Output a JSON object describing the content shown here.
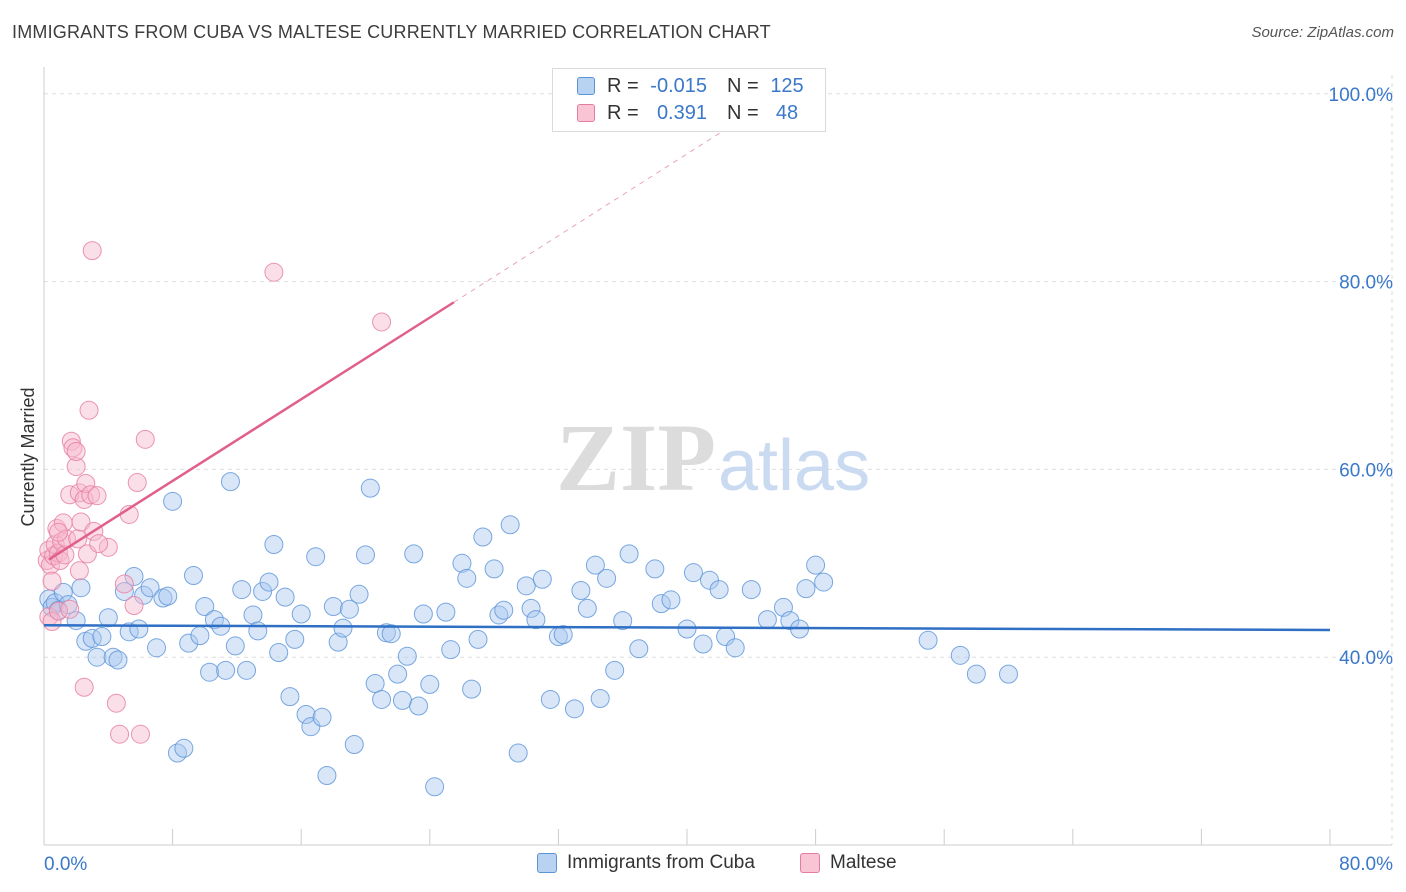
{
  "header": {
    "title": "IMMIGRANTS FROM CUBA VS MALTESE CURRENTLY MARRIED CORRELATION CHART",
    "source": "Source: ZipAtlas.com"
  },
  "legend": {
    "rows": [
      {
        "r_label": "R =",
        "r_value": "-0.015",
        "n_label": "N =",
        "n_value": "125"
      },
      {
        "r_label": "R =",
        "r_value": "0.391",
        "n_label": "N =",
        "n_value": "48"
      }
    ]
  },
  "bottom_legend": {
    "series1": "Immigrants from Cuba",
    "series2": "Maltese"
  },
  "colors": {
    "cuba_fill": "#a9c8f0",
    "cuba_stroke": "#5b93d8",
    "cuba_line": "#2f6fc4",
    "maltese_fill": "#f7b7cb",
    "maltese_stroke": "#e67c9f",
    "maltese_line": "#e0608b",
    "axis_label": "#3a78c9",
    "grid": "#dedede"
  },
  "chart_data": {
    "type": "scatter",
    "title": "IMMIGRANTS FROM CUBA VS MALTESE CURRENTLY MARRIED CORRELATION CHART",
    "xlabel": "",
    "ylabel": "Currently Married",
    "xlim": [
      0,
      80
    ],
    "ylim": [
      20,
      102
    ],
    "x_tick_labels": [
      "0.0%",
      "80.0%"
    ],
    "y_tick_labels": [
      "40.0%",
      "60.0%",
      "80.0%",
      "100.0%"
    ],
    "y_ticks": [
      40,
      60,
      80,
      100
    ],
    "watermark": {
      "zip": "ZIP",
      "atlas": "atlas"
    },
    "series": [
      {
        "name": "Immigrants from Cuba",
        "R": -0.015,
        "N": 125,
        "trend": {
          "x": [
            0,
            80
          ],
          "y": [
            43.4,
            42.9
          ]
        },
        "points": [
          [
            0.3,
            46.2
          ],
          [
            0.5,
            45.3
          ],
          [
            0.7,
            45.8
          ],
          [
            0.9,
            45.0
          ],
          [
            1.2,
            46.9
          ],
          [
            1.5,
            45.6
          ],
          [
            2.0,
            43.9
          ],
          [
            2.3,
            47.4
          ],
          [
            2.6,
            41.7
          ],
          [
            3.0,
            42.0
          ],
          [
            3.3,
            40.0
          ],
          [
            3.6,
            42.2
          ],
          [
            4.0,
            44.2
          ],
          [
            4.3,
            40.0
          ],
          [
            4.6,
            39.7
          ],
          [
            5.0,
            47.0
          ],
          [
            5.3,
            42.7
          ],
          [
            5.6,
            48.6
          ],
          [
            5.9,
            43.0
          ],
          [
            6.2,
            46.6
          ],
          [
            6.6,
            47.4
          ],
          [
            7.0,
            41.0
          ],
          [
            7.4,
            46.3
          ],
          [
            7.7,
            46.5
          ],
          [
            8.0,
            56.6
          ],
          [
            8.3,
            29.8
          ],
          [
            8.7,
            30.3
          ],
          [
            9.0,
            41.5
          ],
          [
            9.3,
            48.7
          ],
          [
            9.7,
            42.3
          ],
          [
            10.0,
            45.4
          ],
          [
            10.3,
            38.4
          ],
          [
            10.6,
            44.0
          ],
          [
            11.0,
            43.3
          ],
          [
            11.3,
            38.6
          ],
          [
            11.6,
            58.7
          ],
          [
            11.9,
            41.2
          ],
          [
            12.3,
            47.2
          ],
          [
            12.6,
            38.6
          ],
          [
            13.0,
            44.5
          ],
          [
            13.3,
            42.8
          ],
          [
            13.6,
            47.0
          ],
          [
            14.0,
            48.0
          ],
          [
            14.3,
            52.0
          ],
          [
            14.6,
            40.5
          ],
          [
            15.0,
            46.4
          ],
          [
            15.3,
            35.8
          ],
          [
            15.6,
            41.9
          ],
          [
            16.0,
            44.6
          ],
          [
            16.3,
            33.9
          ],
          [
            16.6,
            32.6
          ],
          [
            16.9,
            50.7
          ],
          [
            17.3,
            33.6
          ],
          [
            17.6,
            27.4
          ],
          [
            18.0,
            45.4
          ],
          [
            18.3,
            41.6
          ],
          [
            18.6,
            43.1
          ],
          [
            19.0,
            45.1
          ],
          [
            19.3,
            30.7
          ],
          [
            19.6,
            46.7
          ],
          [
            20.0,
            50.9
          ],
          [
            20.3,
            58.0
          ],
          [
            20.6,
            37.2
          ],
          [
            21.0,
            35.5
          ],
          [
            21.3,
            42.6
          ],
          [
            21.6,
            42.5
          ],
          [
            22.0,
            38.2
          ],
          [
            22.3,
            35.4
          ],
          [
            22.6,
            40.1
          ],
          [
            23.0,
            51.0
          ],
          [
            23.3,
            34.8
          ],
          [
            23.6,
            44.6
          ],
          [
            24.0,
            37.1
          ],
          [
            24.3,
            26.2
          ],
          [
            25.0,
            44.8
          ],
          [
            25.3,
            40.8
          ],
          [
            26.0,
            50.0
          ],
          [
            26.3,
            48.4
          ],
          [
            26.6,
            36.6
          ],
          [
            27.0,
            41.9
          ],
          [
            27.3,
            52.8
          ],
          [
            28.0,
            49.4
          ],
          [
            28.3,
            44.5
          ],
          [
            28.6,
            45.0
          ],
          [
            29.0,
            54.1
          ],
          [
            29.5,
            29.8
          ],
          [
            30.0,
            47.6
          ],
          [
            30.3,
            45.2
          ],
          [
            30.6,
            44.0
          ],
          [
            31.0,
            48.3
          ],
          [
            31.5,
            35.5
          ],
          [
            32.0,
            42.2
          ],
          [
            32.3,
            42.4
          ],
          [
            33.0,
            34.5
          ],
          [
            33.4,
            47.1
          ],
          [
            33.8,
            45.2
          ],
          [
            34.3,
            49.8
          ],
          [
            34.6,
            35.6
          ],
          [
            35.0,
            48.4
          ],
          [
            35.5,
            38.6
          ],
          [
            36.0,
            43.9
          ],
          [
            36.4,
            51.0
          ],
          [
            37.0,
            40.9
          ],
          [
            38.0,
            49.4
          ],
          [
            38.4,
            45.7
          ],
          [
            39.0,
            46.1
          ],
          [
            40.0,
            43.0
          ],
          [
            40.4,
            49.0
          ],
          [
            41.0,
            41.4
          ],
          [
            41.4,
            48.2
          ],
          [
            42.0,
            47.2
          ],
          [
            42.4,
            42.2
          ],
          [
            43.0,
            41.0
          ],
          [
            44.0,
            47.2
          ],
          [
            45.0,
            44.0
          ],
          [
            46.0,
            45.3
          ],
          [
            46.4,
            43.9
          ],
          [
            47.0,
            43.0
          ],
          [
            47.4,
            47.3
          ],
          [
            48.0,
            49.8
          ],
          [
            48.5,
            48.0
          ],
          [
            55.0,
            41.8
          ],
          [
            57.0,
            40.2
          ],
          [
            58.0,
            38.2
          ],
          [
            60.0,
            38.2
          ]
        ]
      },
      {
        "name": "Maltese",
        "R": 0.391,
        "N": 48,
        "trend": {
          "x": [
            0.3,
            25.5
          ],
          "y": [
            50.4,
            77.8
          ]
        },
        "trend_ext": {
          "x": [
            25.5,
            44.5
          ],
          "y": [
            77.8,
            98.5
          ]
        },
        "points": [
          [
            0.2,
            50.3
          ],
          [
            0.3,
            51.4
          ],
          [
            0.4,
            49.8
          ],
          [
            0.5,
            48.1
          ],
          [
            0.6,
            50.8
          ],
          [
            0.7,
            52.0
          ],
          [
            0.8,
            53.7
          ],
          [
            0.9,
            51.1
          ],
          [
            1.0,
            50.3
          ],
          [
            1.1,
            52.3
          ],
          [
            1.2,
            54.3
          ],
          [
            1.3,
            50.9
          ],
          [
            1.4,
            52.6
          ],
          [
            1.6,
            57.3
          ],
          [
            1.7,
            63.0
          ],
          [
            1.8,
            62.3
          ],
          [
            2.0,
            60.3
          ],
          [
            2.0,
            61.9
          ],
          [
            2.1,
            52.6
          ],
          [
            2.2,
            57.5
          ],
          [
            2.3,
            54.4
          ],
          [
            2.5,
            56.8
          ],
          [
            2.6,
            58.5
          ],
          [
            2.7,
            51.0
          ],
          [
            2.8,
            66.3
          ],
          [
            2.9,
            57.3
          ],
          [
            3.0,
            83.3
          ],
          [
            3.1,
            53.4
          ],
          [
            3.3,
            57.2
          ],
          [
            0.3,
            44.3
          ],
          [
            0.5,
            43.8
          ],
          [
            0.9,
            44.9
          ],
          [
            1.6,
            45.1
          ],
          [
            2.2,
            49.2
          ],
          [
            2.5,
            36.8
          ],
          [
            4.0,
            51.7
          ],
          [
            4.5,
            35.1
          ],
          [
            4.7,
            31.8
          ],
          [
            5.0,
            47.8
          ],
          [
            5.3,
            55.2
          ],
          [
            5.6,
            45.5
          ],
          [
            5.8,
            58.6
          ],
          [
            6.0,
            31.8
          ],
          [
            6.3,
            63.2
          ],
          [
            14.3,
            81.0
          ],
          [
            21.0,
            75.7
          ],
          [
            0.9,
            53.3
          ],
          [
            3.4,
            52.1
          ]
        ]
      }
    ]
  }
}
